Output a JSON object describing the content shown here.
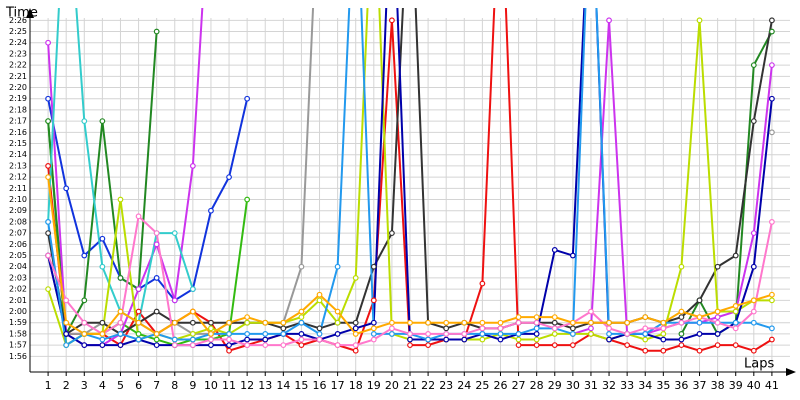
{
  "chart_data": {
    "type": "line",
    "y_label": "Time",
    "x_label": "Laps",
    "xlim": [
      0,
      42
    ],
    "xticks": [
      1,
      2,
      3,
      4,
      5,
      6,
      7,
      8,
      9,
      10,
      11,
      12,
      13,
      14,
      15,
      16,
      17,
      18,
      19,
      20,
      21,
      22,
      23,
      24,
      25,
      26,
      27,
      28,
      29,
      30,
      31,
      32,
      33,
      34,
      35,
      36,
      37,
      38,
      39,
      40,
      41
    ],
    "ylim": [
      114.6,
      147.1
    ],
    "yticks": [
      {
        "value": 116,
        "label": "1:56"
      },
      {
        "value": 117,
        "label": "1:57"
      },
      {
        "value": 118,
        "label": "1:58"
      },
      {
        "value": 119,
        "label": "1:59"
      },
      {
        "value": 120,
        "label": "2:00"
      },
      {
        "value": 121,
        "label": "2:01"
      },
      {
        "value": 122,
        "label": "2:02"
      },
      {
        "value": 123,
        "label": "2:03"
      },
      {
        "value": 124,
        "label": "2:04"
      },
      {
        "value": 125,
        "label": "2:05"
      },
      {
        "value": 126,
        "label": "2:06"
      },
      {
        "value": 127,
        "label": "2:07"
      },
      {
        "value": 128,
        "label": "2:08"
      },
      {
        "value": 129,
        "label": "2:09"
      },
      {
        "value": 130,
        "label": "2:10"
      },
      {
        "value": 131,
        "label": "2:11"
      },
      {
        "value": 132,
        "label": "2:12"
      },
      {
        "value": 133,
        "label": "2:13"
      },
      {
        "value": 134,
        "label": "2:14"
      },
      {
        "value": 135,
        "label": "2:15"
      },
      {
        "value": 136,
        "label": "2:16"
      },
      {
        "value": 137,
        "label": "2:17"
      },
      {
        "value": 138,
        "label": "2:18"
      },
      {
        "value": 139,
        "label": "2:19"
      },
      {
        "value": 140,
        "label": "2:20"
      },
      {
        "value": 141,
        "label": "2:21"
      },
      {
        "value": 142,
        "label": "2:22"
      },
      {
        "value": 143,
        "label": "2:23"
      },
      {
        "value": 144,
        "label": "2:24"
      },
      {
        "value": 145,
        "label": "2:25"
      },
      {
        "value": 146,
        "label": "2:26"
      }
    ],
    "grid": true,
    "series": [
      {
        "color": "#ee1111",
        "values": [
          133,
          118,
          118,
          118,
          117,
          120,
          118,
          119,
          120,
          119,
          116.5,
          117,
          117.5,
          118,
          117,
          117.5,
          117,
          116.5,
          121,
          146,
          117,
          117,
          117.5,
          117.5,
          122.5,
          160,
          117,
          117,
          117,
          117,
          118,
          117.5,
          117,
          116.5,
          116.5,
          117,
          116.5,
          117,
          117,
          116.5,
          117.5
        ]
      },
      {
        "color": "#1133dd",
        "values": [
          139,
          131,
          125,
          126.5,
          123,
          122,
          123,
          121,
          122,
          129,
          132,
          139,
          null,
          null,
          null,
          null,
          null,
          null,
          null,
          null,
          null,
          null,
          null,
          null,
          null,
          null,
          null,
          null,
          null,
          null,
          null,
          null,
          null,
          null,
          null,
          null,
          null,
          null,
          null,
          null,
          null
        ]
      },
      {
        "color": "#33bb11",
        "values": [
          137,
          117,
          118,
          118,
          119,
          118,
          117.5,
          117,
          117.5,
          117.5,
          118,
          130,
          null,
          null,
          null,
          null,
          null,
          null,
          null,
          null,
          null,
          null,
          null,
          null,
          null,
          null,
          null,
          null,
          null,
          null,
          null,
          null,
          null,
          null,
          null,
          null,
          null,
          null,
          null,
          null,
          null
        ]
      },
      {
        "color": "#228822",
        "values": [
          137,
          118,
          121,
          137,
          123,
          122,
          145,
          null,
          null,
          null,
          null,
          null,
          null,
          null,
          null,
          null,
          null,
          null,
          null,
          null,
          null,
          null,
          null,
          null,
          null,
          null,
          null,
          null,
          null,
          null,
          null,
          null,
          null,
          null,
          null,
          118,
          121,
          118,
          119,
          142,
          145
        ]
      },
      {
        "color": "#cc33ee",
        "values": [
          144,
          118,
          117,
          117,
          118,
          122,
          126,
          121,
          133,
          160,
          null,
          null,
          null,
          null,
          null,
          null,
          null,
          null,
          null,
          null,
          null,
          null,
          null,
          null,
          null,
          null,
          null,
          null,
          null,
          118,
          118.5,
          146,
          118,
          118,
          118.5,
          119,
          119,
          119.5,
          120,
          127,
          142
        ]
      },
      {
        "color": "#33cccc",
        "values": [
          128,
          160,
          137,
          124,
          120,
          119,
          127,
          127,
          122,
          null,
          null,
          null,
          null,
          null,
          null,
          null,
          null,
          null,
          null,
          null,
          null,
          null,
          null,
          null,
          null,
          null,
          null,
          null,
          null,
          null,
          null,
          null,
          null,
          null,
          null,
          null,
          null,
          null,
          null,
          null,
          null
        ]
      },
      {
        "color": "#999999",
        "values": [
          125,
          118,
          118,
          119,
          118,
          119,
          118,
          119,
          118,
          118,
          119,
          119,
          119,
          119,
          124,
          160,
          null,
          null,
          null,
          null,
          null,
          null,
          null,
          null,
          null,
          null,
          null,
          null,
          null,
          null,
          null,
          null,
          null,
          null,
          null,
          null,
          null,
          null,
          null,
          null,
          136
        ]
      },
      {
        "color": "#333333",
        "values": [
          127,
          118,
          119,
          119,
          118,
          119,
          120,
          119,
          119,
          119,
          119,
          119,
          119,
          118.5,
          119,
          118.5,
          119,
          119,
          124,
          127,
          160,
          119,
          118.5,
          119,
          118.5,
          118.5,
          119,
          119,
          119,
          118.5,
          119,
          119,
          119,
          119.5,
          119,
          119.5,
          121,
          124,
          125,
          137,
          146
        ]
      },
      {
        "color": "#bbdd00",
        "values": [
          122,
          117,
          118,
          118,
          130,
          117.5,
          118,
          117.5,
          118,
          118.5,
          118,
          119,
          119,
          119,
          119.5,
          121,
          119,
          123,
          160,
          118,
          117.5,
          117.5,
          117.5,
          117.5,
          117.5,
          118,
          117.5,
          117.5,
          118,
          118,
          118,
          117.5,
          118,
          117.5,
          118,
          124,
          146,
          120,
          120,
          121,
          121
        ]
      },
      {
        "color": "#0000aa",
        "values": [
          125,
          118,
          117,
          117,
          117,
          117.5,
          117,
          117,
          117,
          117,
          117,
          117.5,
          117.5,
          118,
          118,
          117.5,
          118,
          118.5,
          119,
          160,
          117.5,
          117.5,
          117.5,
          117.5,
          118,
          117.5,
          118,
          118,
          125.5,
          125,
          160,
          117.5,
          118,
          118,
          117.5,
          117.5,
          118,
          118,
          119,
          124,
          139
        ]
      },
      {
        "color": "#2299ee",
        "values": [
          128,
          117,
          118,
          117.5,
          118,
          117.5,
          118,
          117.5,
          117.5,
          118,
          118,
          118,
          118,
          118,
          119,
          118,
          124,
          160,
          118,
          118,
          118,
          117.5,
          118,
          118,
          118,
          118,
          118,
          118.5,
          118.5,
          118,
          160,
          118,
          118,
          118,
          119,
          119,
          119,
          119,
          119,
          119,
          118.5
        ]
      },
      {
        "color": "#ff77cc",
        "values": [
          125,
          121,
          119,
          118,
          119,
          128.5,
          127,
          117,
          117,
          117.5,
          117.5,
          117,
          117,
          117,
          117.5,
          117.5,
          117,
          117,
          117.5,
          118.5,
          118,
          118,
          118,
          118,
          118.5,
          118.5,
          119,
          119,
          118.5,
          119,
          120,
          118.5,
          118,
          118.5,
          118.5,
          119,
          119.5,
          119,
          118.5,
          120,
          128
        ]
      },
      {
        "color": "#ffaa00",
        "values": [
          132,
          119,
          118,
          118,
          120,
          119,
          118,
          119,
          120,
          118,
          119,
          119.5,
          119,
          119,
          120,
          121.5,
          120,
          118,
          118.5,
          119,
          119,
          119,
          119,
          119,
          119,
          119,
          119.5,
          119.5,
          119.5,
          119,
          119,
          119,
          119,
          119.5,
          119,
          120,
          119.5,
          120,
          120.5,
          121,
          121.5
        ]
      }
    ]
  }
}
